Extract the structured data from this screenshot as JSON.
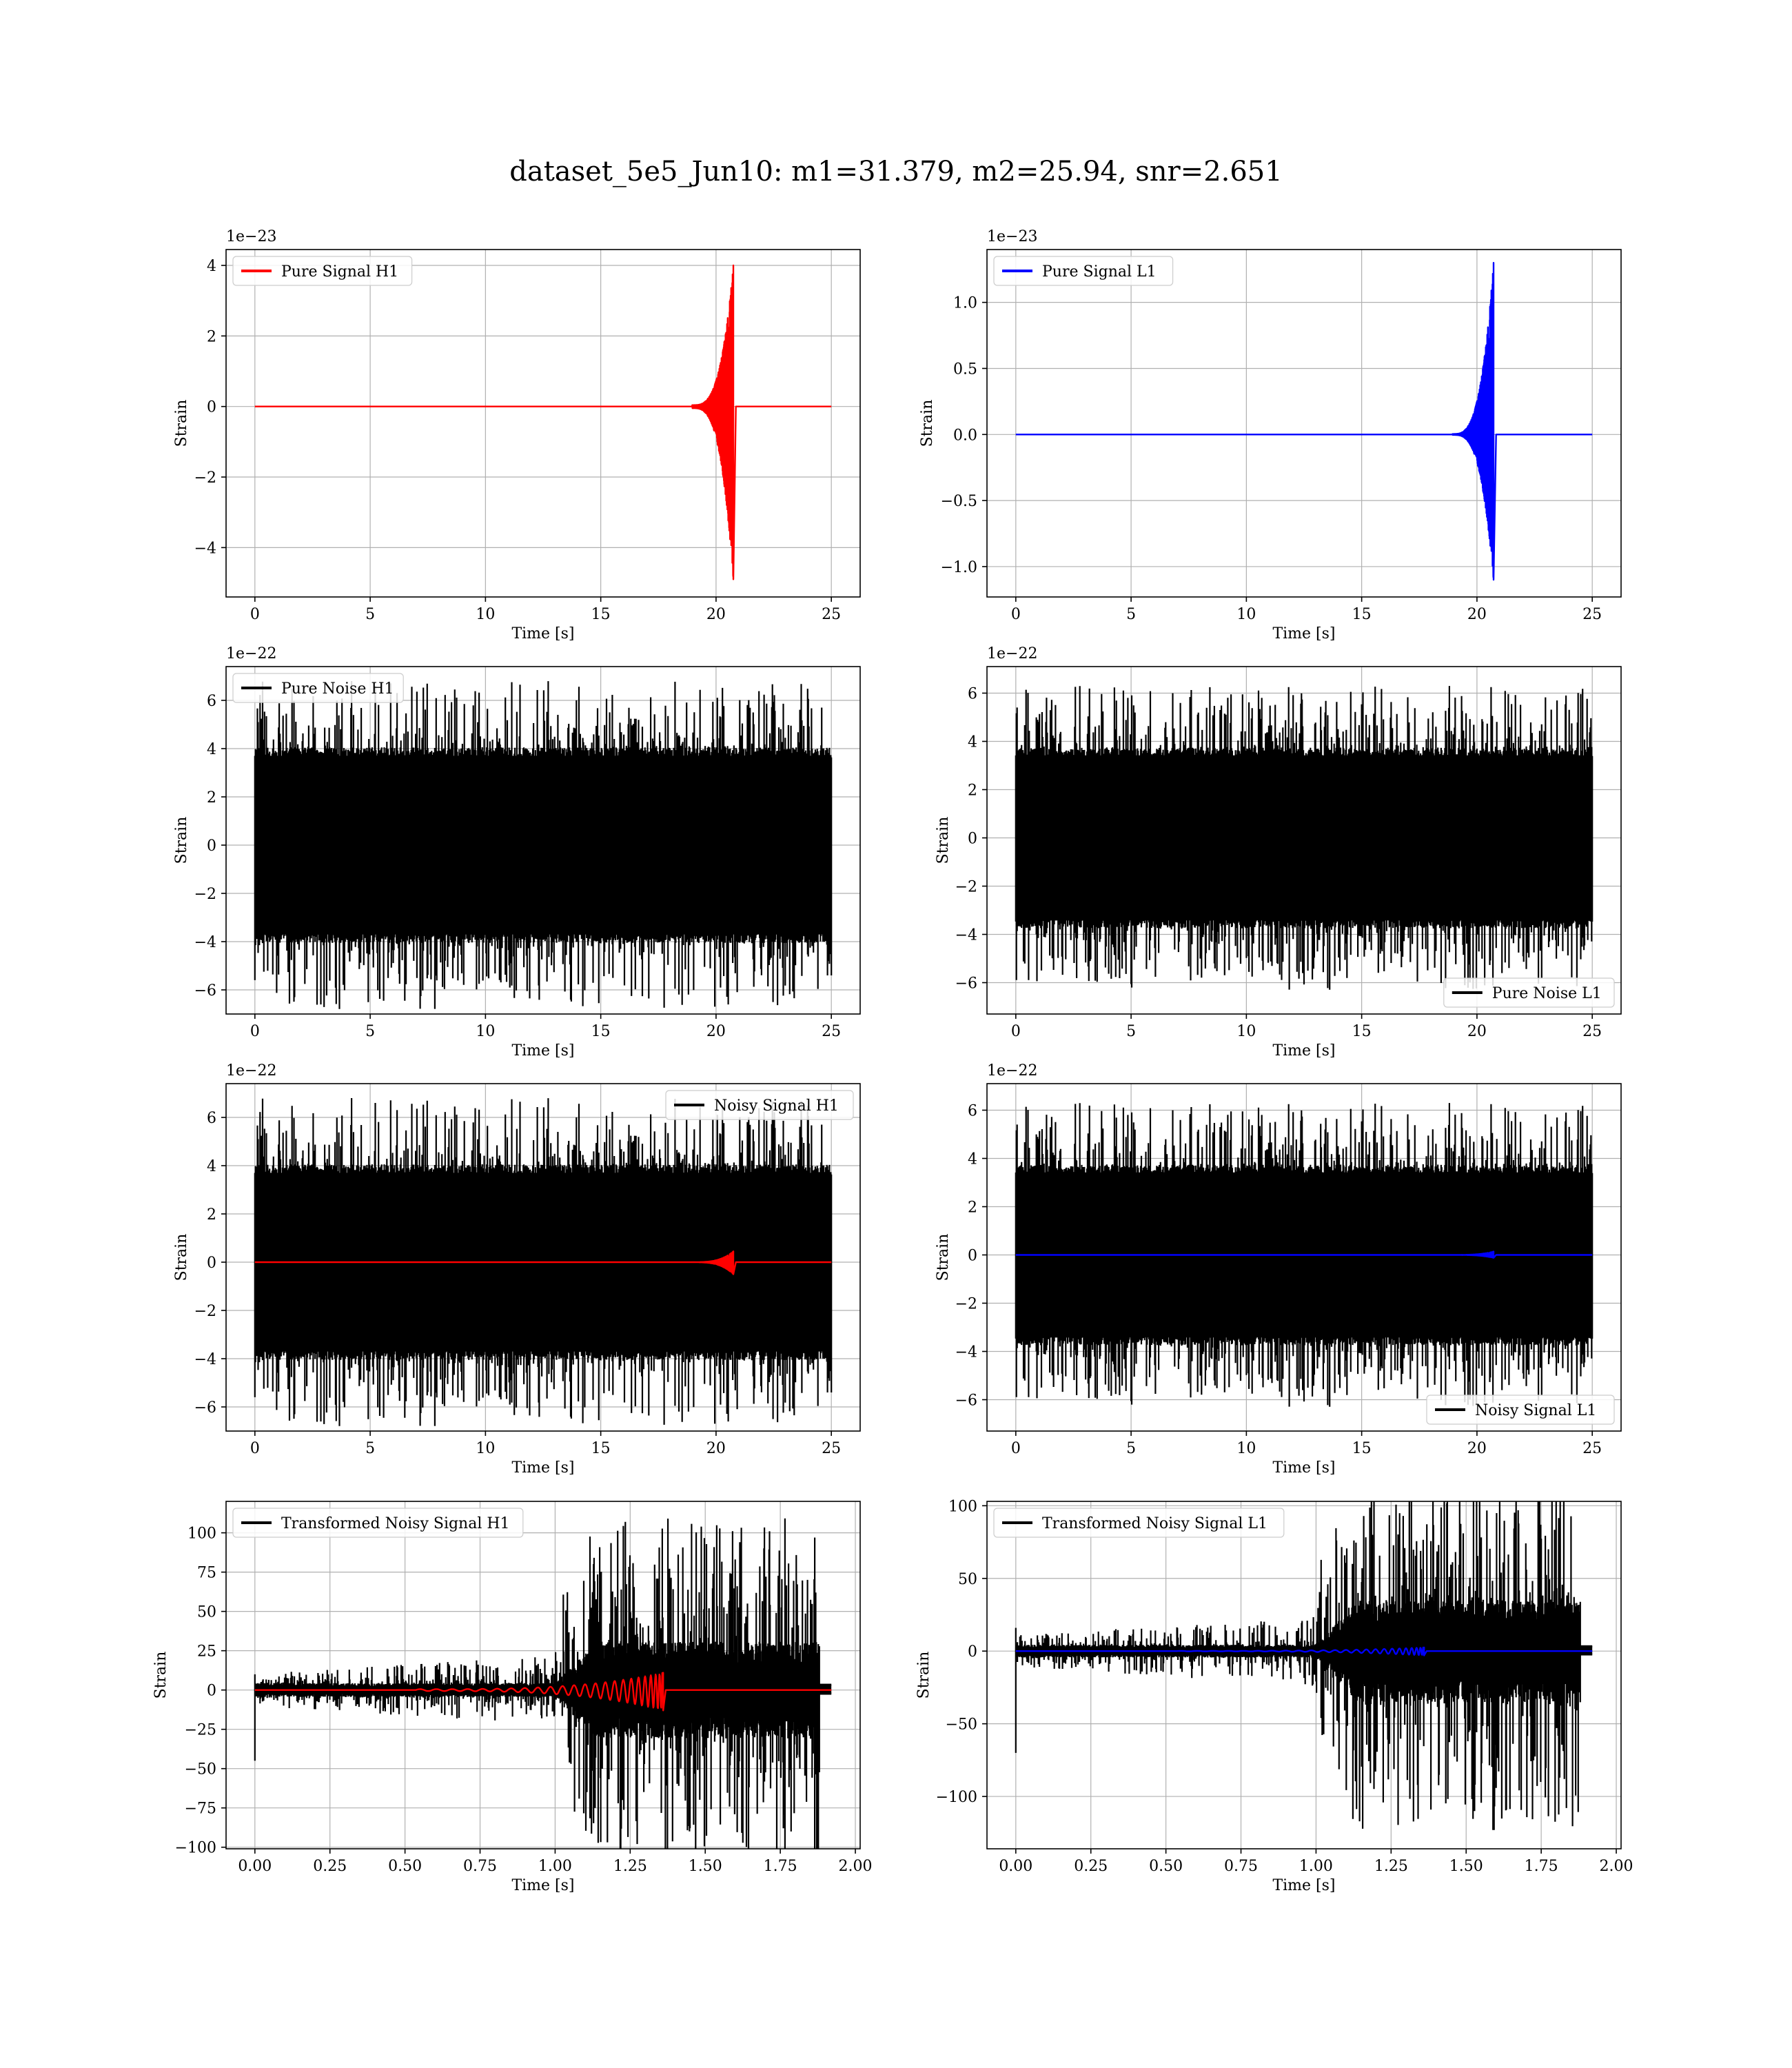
{
  "figure": {
    "title": "dataset_5e5_Jun10: m1=31.379, m2=25.94, snr=2.651"
  },
  "chart_data": [
    {
      "id": "h1-pure-signal",
      "type": "line",
      "xlabel": "Time [s]",
      "ylabel": "Strain",
      "offset_text": "1e−23",
      "xlim": [
        -1.25,
        26.25
      ],
      "ylim": [
        -5.4,
        4.45
      ],
      "xticks": [
        0,
        5,
        10,
        15,
        20,
        25
      ],
      "xtick_labels": [
        "0",
        "5",
        "10",
        "15",
        "20",
        "25"
      ],
      "yticks": [
        -4,
        -2,
        0,
        2,
        4
      ],
      "ytick_labels": [
        "−4",
        "−2",
        "0",
        "2",
        "4"
      ],
      "grid": true,
      "legend_position": "upper-left",
      "series": [
        {
          "name": "Pure Signal H1",
          "color": "#ff0000",
          "kind": "chirp",
          "duration": 25,
          "merger_time": 20.75,
          "peak_max": 4.0,
          "peak_min": -4.9,
          "start_amplitude": 0.01
        }
      ]
    },
    {
      "id": "l1-pure-signal",
      "type": "line",
      "xlabel": "Time [s]",
      "ylabel": "Strain",
      "offset_text": "1e−23",
      "xlim": [
        -1.25,
        26.25
      ],
      "ylim": [
        -1.23,
        1.4
      ],
      "xticks": [
        0,
        5,
        10,
        15,
        20,
        25
      ],
      "xtick_labels": [
        "0",
        "5",
        "10",
        "15",
        "20",
        "25"
      ],
      "yticks": [
        -1.0,
        -0.5,
        0.0,
        0.5,
        1.0
      ],
      "ytick_labels": [
        "−1.0",
        "−0.5",
        "0.0",
        "0.5",
        "1.0"
      ],
      "grid": true,
      "legend_position": "upper-left",
      "series": [
        {
          "name": "Pure Signal L1",
          "color": "#0000ff",
          "kind": "chirp",
          "duration": 25,
          "merger_time": 20.72,
          "peak_max": 1.3,
          "peak_min": -1.1,
          "start_amplitude": 0.003
        }
      ]
    },
    {
      "id": "h1-pure-noise",
      "type": "line",
      "xlabel": "Time [s]",
      "ylabel": "Strain",
      "offset_text": "1e−22",
      "xlim": [
        -1.25,
        26.25
      ],
      "ylim": [
        -7.0,
        7.4
      ],
      "xticks": [
        0,
        5,
        10,
        15,
        20,
        25
      ],
      "xtick_labels": [
        "0",
        "5",
        "10",
        "15",
        "20",
        "25"
      ],
      "yticks": [
        -6,
        -4,
        -2,
        0,
        2,
        4,
        6
      ],
      "ytick_labels": [
        "−6",
        "−4",
        "−2",
        "0",
        "2",
        "4",
        "6"
      ],
      "grid": true,
      "legend_position": "upper-left",
      "series": [
        {
          "name": "Pure Noise H1",
          "color": "#000000",
          "kind": "noise",
          "duration": 25,
          "core": 3.9,
          "peak": 6.8,
          "seed": 11
        }
      ]
    },
    {
      "id": "l1-pure-noise",
      "type": "line",
      "xlabel": "Time [s]",
      "ylabel": "Strain",
      "offset_text": "1e−22",
      "xlim": [
        -1.25,
        26.25
      ],
      "ylim": [
        -7.3,
        7.1
      ],
      "xticks": [
        0,
        5,
        10,
        15,
        20,
        25
      ],
      "xtick_labels": [
        "0",
        "5",
        "10",
        "15",
        "20",
        "25"
      ],
      "yticks": [
        -6,
        -4,
        -2,
        0,
        2,
        4,
        6
      ],
      "ytick_labels": [
        "−6",
        "−4",
        "−2",
        "0",
        "2",
        "4",
        "6"
      ],
      "grid": true,
      "legend_position": "lower-right",
      "series": [
        {
          "name": "Pure Noise L1",
          "color": "#000000",
          "kind": "noise",
          "duration": 25,
          "core": 3.6,
          "peak": 6.3,
          "seed": 23
        }
      ]
    },
    {
      "id": "h1-noisy-signal",
      "type": "line",
      "xlabel": "Time [s]",
      "ylabel": "Strain",
      "offset_text": "1e−22",
      "xlim": [
        -1.25,
        26.25
      ],
      "ylim": [
        -7.0,
        7.4
      ],
      "xticks": [
        0,
        5,
        10,
        15,
        20,
        25
      ],
      "xtick_labels": [
        "0",
        "5",
        "10",
        "15",
        "20",
        "25"
      ],
      "yticks": [
        -6,
        -4,
        -2,
        0,
        2,
        4,
        6
      ],
      "ytick_labels": [
        "−6",
        "−4",
        "−2",
        "0",
        "2",
        "4",
        "6"
      ],
      "grid": true,
      "legend_position": "upper-right",
      "series": [
        {
          "name": "Noisy Signal H1",
          "color": "#000000",
          "kind": "noise",
          "duration": 25,
          "core": 3.9,
          "peak": 6.8,
          "seed": 11
        },
        {
          "name": "",
          "color": "#ff0000",
          "kind": "chirp",
          "duration": 25,
          "merger_time": 20.75,
          "peak_max": 0.45,
          "peak_min": -0.5,
          "start_amplitude": 0.005
        }
      ]
    },
    {
      "id": "l1-noisy-signal",
      "type": "line",
      "xlabel": "Time [s]",
      "ylabel": "Strain",
      "offset_text": "1e−22",
      "xlim": [
        -1.25,
        26.25
      ],
      "ylim": [
        -7.3,
        7.1
      ],
      "xticks": [
        0,
        5,
        10,
        15,
        20,
        25
      ],
      "xtick_labels": [
        "0",
        "5",
        "10",
        "15",
        "20",
        "25"
      ],
      "yticks": [
        -6,
        -4,
        -2,
        0,
        2,
        4,
        6
      ],
      "ytick_labels": [
        "−6",
        "−4",
        "−2",
        "0",
        "2",
        "4",
        "6"
      ],
      "grid": true,
      "legend_position": "lower-right",
      "series": [
        {
          "name": "Noisy Signal L1",
          "color": "#000000",
          "kind": "noise",
          "duration": 25,
          "core": 3.6,
          "peak": 6.3,
          "seed": 23
        },
        {
          "name": "",
          "color": "#0000ff",
          "kind": "chirp",
          "duration": 25,
          "merger_time": 20.72,
          "peak_max": 0.14,
          "peak_min": -0.12,
          "start_amplitude": 0.003
        }
      ]
    },
    {
      "id": "h1-transformed",
      "type": "line",
      "xlabel": "Time [s]",
      "ylabel": "Strain",
      "offset_text": "",
      "xlim": [
        -0.096,
        2.016
      ],
      "ylim": [
        -101,
        120
      ],
      "xticks": [
        0,
        0.25,
        0.5,
        0.75,
        1.0,
        1.25,
        1.5,
        1.75,
        2.0
      ],
      "xtick_labels": [
        "0.00",
        "0.25",
        "0.50",
        "0.75",
        "1.00",
        "1.25",
        "1.50",
        "1.75",
        "2.00"
      ],
      "yticks": [
        -100,
        -75,
        -50,
        -25,
        0,
        25,
        50,
        75,
        100
      ],
      "ytick_labels": [
        "−100",
        "−75",
        "−50",
        "−25",
        "0",
        "25",
        "50",
        "75",
        "100"
      ],
      "grid": true,
      "legend_position": "upper-left",
      "series": [
        {
          "name": "Transformed Noisy Signal H1",
          "color": "#000000",
          "kind": "whitened",
          "duration": 1.92,
          "end_time": 1.88,
          "pre_core": 4,
          "pre_peak": 22,
          "post_core": 28,
          "post_peak": 110,
          "rise_start": 1.0,
          "rise_end": 1.14,
          "spike_min": -45,
          "spike_max": 10,
          "seed": 5
        },
        {
          "name": "",
          "color": "#ff0000",
          "kind": "chirp",
          "duration": 1.92,
          "merger_time": 1.36,
          "peak_max": 11,
          "peak_min": -13,
          "start_amplitude": 0.05,
          "cycles": 24
        }
      ]
    },
    {
      "id": "l1-transformed",
      "type": "line",
      "xlabel": "Time [s]",
      "ylabel": "Strain",
      "offset_text": "",
      "xlim": [
        -0.096,
        2.016
      ],
      "ylim": [
        -136,
        103
      ],
      "xticks": [
        0,
        0.25,
        0.5,
        0.75,
        1.0,
        1.25,
        1.5,
        1.75,
        2.0
      ],
      "xtick_labels": [
        "0.00",
        "0.25",
        "0.50",
        "0.75",
        "1.00",
        "1.25",
        "1.50",
        "1.75",
        "2.00"
      ],
      "yticks": [
        -100,
        -50,
        0,
        50,
        100
      ],
      "ytick_labels": [
        "−100",
        "−50",
        "0",
        "50",
        "100"
      ],
      "grid": true,
      "legend_position": "upper-left",
      "series": [
        {
          "name": "Transformed Noisy Signal L1",
          "color": "#000000",
          "kind": "whitened",
          "duration": 1.92,
          "end_time": 1.88,
          "pre_core": 4,
          "pre_peak": 24,
          "post_core": 32,
          "post_peak": 125,
          "rise_start": 1.0,
          "rise_end": 1.14,
          "spike_min": -70,
          "spike_max": 16,
          "seed": 9
        },
        {
          "name": "",
          "color": "#0000ff",
          "kind": "chirp",
          "duration": 1.92,
          "merger_time": 1.36,
          "peak_max": 2.5,
          "peak_min": -3,
          "start_amplitude": 0.05,
          "cycles": 24
        }
      ]
    }
  ]
}
